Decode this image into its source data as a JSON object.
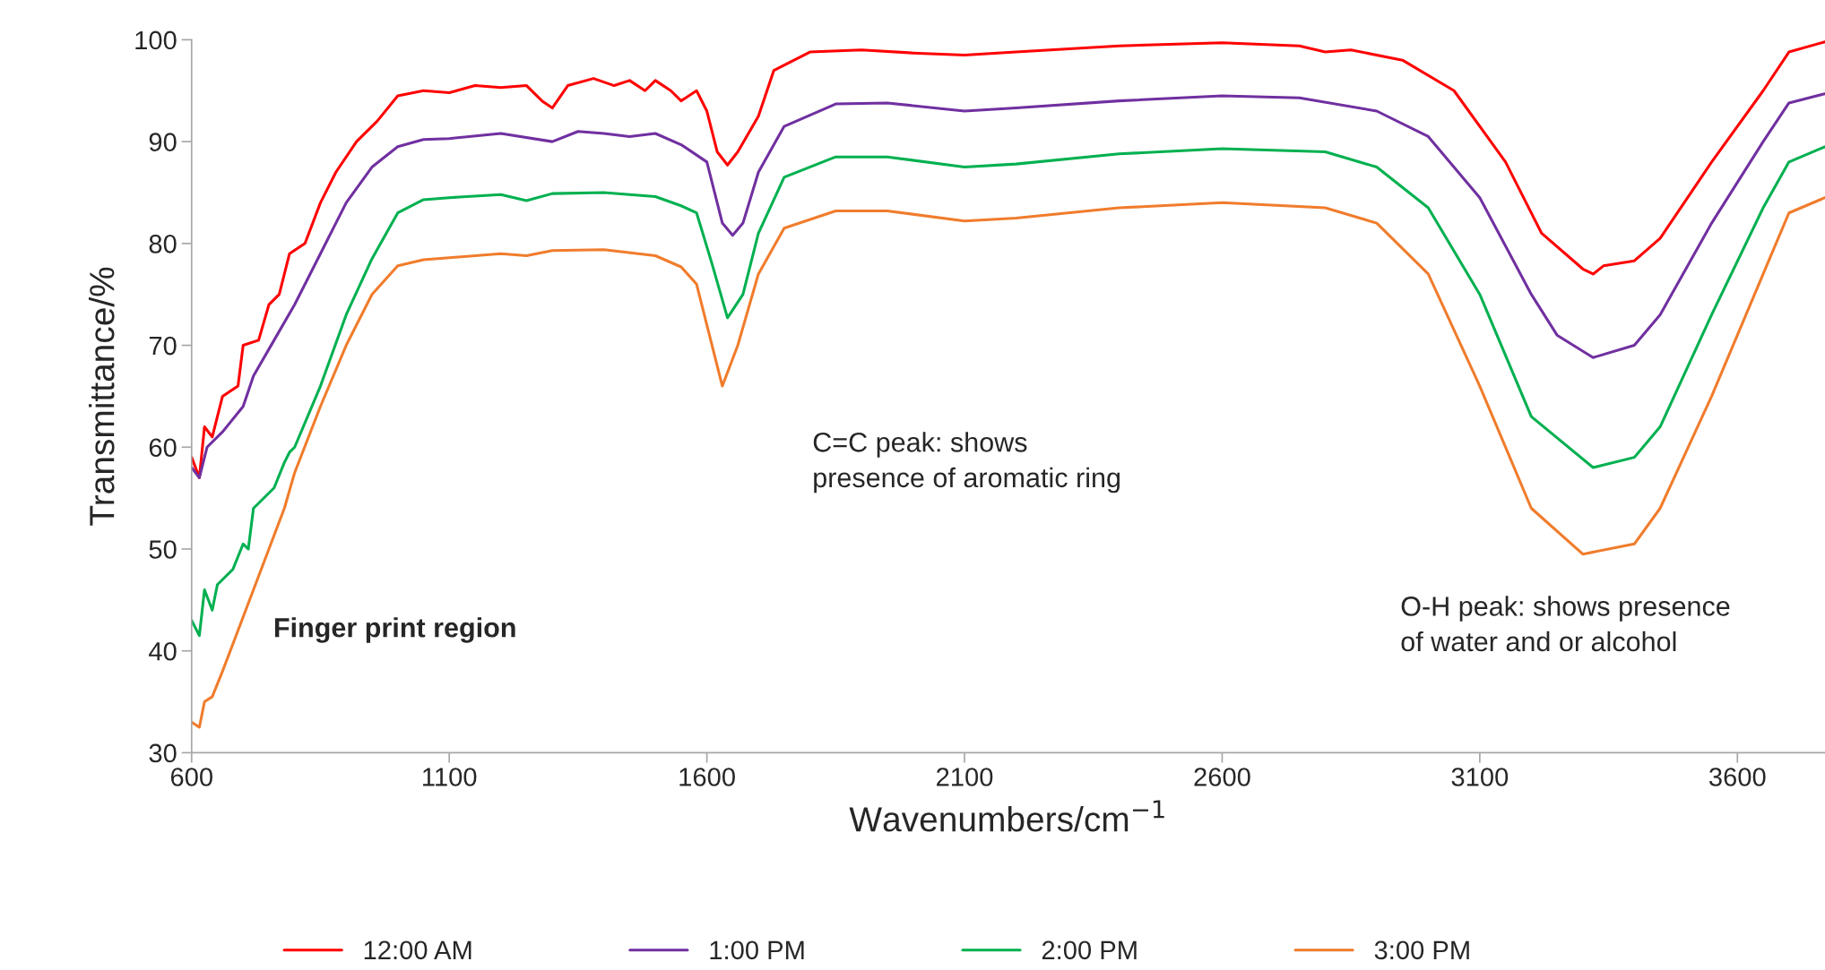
{
  "chart_data": {
    "type": "line",
    "xlabel": "Wavenumbers/cm$^{−1}$",
    "ylabel": "Transmittance/%",
    "xlim": [
      600,
      3770
    ],
    "xticks": [
      600,
      1100,
      1600,
      2100,
      2600,
      3100,
      3600
    ],
    "ylim": [
      30,
      100
    ],
    "yticks": [
      30,
      40,
      50,
      60,
      70,
      80,
      90,
      100
    ],
    "grid": false,
    "legend": "bottom",
    "marker": "none",
    "line_style": "solid",
    "annotations": [
      "Finger print region",
      "C=C peak: shows\npresence of aromatic ring",
      "O-H peak: shows presence\nof water and or alcohol"
    ],
    "series": [
      {
        "name": "12:00 AM",
        "color": "#ff0000",
        "x": [
          600,
          615,
          625,
          640,
          660,
          690,
          700,
          730,
          750,
          770,
          790,
          820,
          850,
          880,
          920,
          960,
          1000,
          1050,
          1100,
          1150,
          1200,
          1250,
          1280,
          1300,
          1330,
          1380,
          1420,
          1450,
          1480,
          1500,
          1530,
          1550,
          1580,
          1600,
          1620,
          1640,
          1660,
          1700,
          1730,
          1800,
          1900,
          2000,
          2100,
          2200,
          2400,
          2600,
          2750,
          2800,
          2850,
          2950,
          3050,
          3150,
          3220,
          3300,
          3320,
          3340,
          3400,
          3450,
          3550,
          3650,
          3700,
          3770
        ],
        "values": [
          59,
          57,
          62,
          61,
          65,
          66,
          70,
          70.5,
          74,
          75,
          79,
          80,
          84,
          87,
          90,
          92,
          94.5,
          95,
          94.8,
          95.5,
          95.3,
          95.5,
          94,
          93.3,
          95.5,
          96.2,
          95.5,
          96,
          95,
          96,
          95,
          94,
          95,
          93,
          89,
          87.7,
          89,
          92.5,
          97,
          98.8,
          99,
          98.7,
          98.5,
          98.8,
          99.4,
          99.7,
          99.4,
          98.8,
          99,
          98,
          95,
          88,
          81,
          77.5,
          77,
          77.8,
          78.3,
          80.5,
          88,
          95,
          98.8,
          99.8
        ]
      },
      {
        "name": "1:00 PM",
        "color": "#7030a0",
        "x": [
          600,
          615,
          630,
          660,
          700,
          720,
          760,
          800,
          850,
          900,
          950,
          1000,
          1050,
          1100,
          1200,
          1300,
          1350,
          1400,
          1450,
          1500,
          1550,
          1600,
          1630,
          1650,
          1670,
          1700,
          1750,
          1850,
          1950,
          2100,
          2200,
          2400,
          2600,
          2750,
          2900,
          3000,
          3100,
          3200,
          3250,
          3320,
          3400,
          3450,
          3550,
          3650,
          3700,
          3770
        ],
        "values": [
          58,
          57,
          60,
          61.5,
          64,
          67,
          70.5,
          74,
          79,
          84,
          87.5,
          89.5,
          90.2,
          90.3,
          90.8,
          90,
          91,
          90.8,
          90.5,
          90.8,
          89.7,
          88,
          82,
          80.8,
          82,
          87,
          91.5,
          93.7,
          93.8,
          93,
          93.3,
          94,
          94.5,
          94.3,
          93,
          90.5,
          84.5,
          75,
          71,
          68.8,
          70,
          73,
          82,
          90,
          93.8,
          94.7
        ]
      },
      {
        "name": "2:00 PM",
        "color": "#00b050",
        "x": [
          600,
          615,
          625,
          640,
          650,
          680,
          700,
          710,
          720,
          760,
          780,
          790,
          800,
          850,
          900,
          950,
          1000,
          1050,
          1100,
          1200,
          1250,
          1300,
          1400,
          1500,
          1550,
          1580,
          1610,
          1640,
          1670,
          1700,
          1750,
          1850,
          1950,
          2100,
          2200,
          2400,
          2600,
          2800,
          2900,
          3000,
          3100,
          3200,
          3320,
          3400,
          3450,
          3550,
          3650,
          3700,
          3770
        ],
        "values": [
          43,
          41.5,
          46,
          44,
          46.5,
          48,
          50.5,
          50,
          54,
          56,
          58.5,
          59.5,
          60,
          66,
          73,
          78.5,
          83,
          84.3,
          84.5,
          84.8,
          84.2,
          84.9,
          85,
          84.6,
          83.7,
          83,
          78,
          72.7,
          75,
          81,
          86.5,
          88.5,
          88.5,
          87.5,
          87.8,
          88.8,
          89.3,
          89,
          87.5,
          83.5,
          75,
          63,
          58,
          59,
          62,
          73,
          83.5,
          88,
          89.5
        ]
      },
      {
        "name": "3:00 PM",
        "color": "#f07c2c",
        "x": [
          600,
          615,
          625,
          640,
          660,
          690,
          720,
          750,
          780,
          800,
          850,
          900,
          950,
          1000,
          1050,
          1100,
          1200,
          1250,
          1300,
          1400,
          1500,
          1550,
          1580,
          1610,
          1630,
          1660,
          1700,
          1750,
          1850,
          1950,
          2100,
          2200,
          2400,
          2600,
          2800,
          2900,
          3000,
          3100,
          3200,
          3300,
          3400,
          3450,
          3550,
          3650,
          3700,
          3770
        ],
        "values": [
          33,
          32.5,
          35,
          35.5,
          38,
          42,
          46,
          50,
          54,
          57.5,
          64,
          70,
          75,
          77.8,
          78.4,
          78.6,
          79,
          78.8,
          79.3,
          79.4,
          78.8,
          77.7,
          76,
          70,
          66,
          70,
          77,
          81.5,
          83.2,
          83.2,
          82.2,
          82.5,
          83.5,
          84,
          83.5,
          82,
          77,
          66,
          54,
          49.5,
          50.5,
          54,
          65,
          77,
          83,
          84.5
        ]
      }
    ]
  }
}
